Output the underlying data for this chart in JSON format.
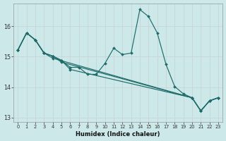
{
  "xlabel": "Humidex (Indice chaleur)",
  "bg_color": "#cde8e8",
  "line_color": "#1e6b6b",
  "grid_color": "#c8d8d8",
  "xlim_min": -0.5,
  "xlim_max": 23.5,
  "ylim_min": 12.85,
  "ylim_max": 16.75,
  "yticks": [
    13,
    14,
    15,
    16
  ],
  "xticks": [
    0,
    1,
    2,
    3,
    4,
    5,
    6,
    7,
    8,
    9,
    10,
    11,
    12,
    13,
    14,
    15,
    16,
    17,
    18,
    19,
    20,
    21,
    22,
    23
  ],
  "main_x": [
    0,
    1,
    2,
    3,
    4,
    5,
    6,
    7,
    8,
    9,
    10,
    11,
    12,
    13,
    14,
    15,
    16,
    17,
    18,
    19,
    20,
    21,
    22,
    23
  ],
  "main_y": [
    15.22,
    15.78,
    15.55,
    15.12,
    15.02,
    14.88,
    14.65,
    14.65,
    14.42,
    14.42,
    14.78,
    15.28,
    15.07,
    15.12,
    16.55,
    16.32,
    15.78,
    14.75,
    14.02,
    13.78,
    13.65,
    13.22,
    13.55,
    13.65
  ],
  "diag1_x": [
    0,
    1,
    2,
    3,
    4,
    5,
    6,
    20,
    21,
    22,
    23
  ],
  "diag1_y": [
    15.22,
    15.78,
    15.55,
    15.12,
    15.02,
    14.88,
    14.58,
    13.65,
    13.22,
    13.55,
    13.65
  ],
  "diag2_x": [
    0,
    1,
    2,
    3,
    4,
    5,
    20,
    21,
    22,
    23
  ],
  "diag2_y": [
    15.22,
    15.78,
    15.55,
    15.12,
    15.02,
    14.82,
    13.65,
    13.22,
    13.55,
    13.65
  ],
  "diag3_x": [
    0,
    1,
    2,
    3,
    4,
    20,
    21,
    22,
    23
  ],
  "diag3_y": [
    15.22,
    15.78,
    15.55,
    15.12,
    14.95,
    13.65,
    13.22,
    13.55,
    13.65
  ]
}
